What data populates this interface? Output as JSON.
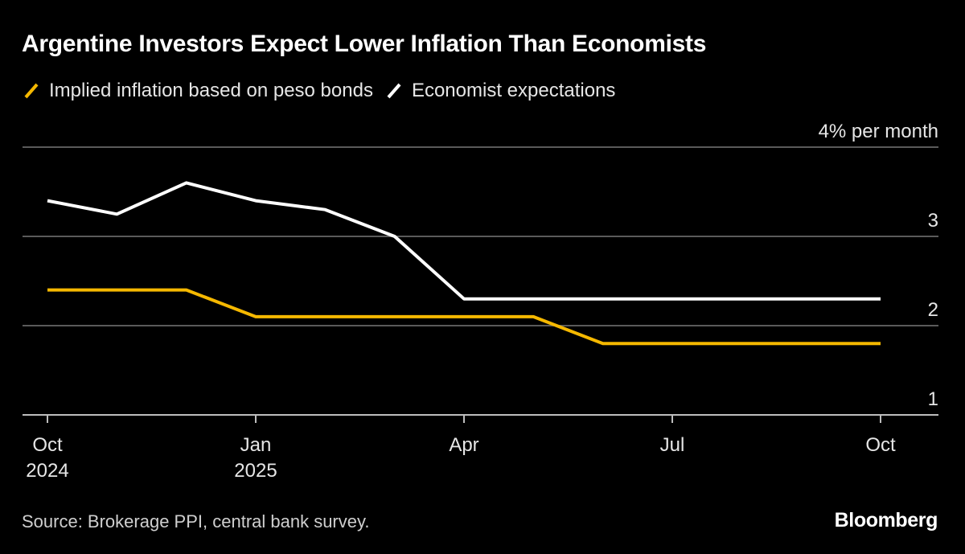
{
  "header": {
    "title": "Argentine Investors Expect Lower Inflation Than Economists"
  },
  "legend": {
    "items": [
      {
        "label": "Implied inflation based on peso bonds",
        "color": "#f5b800"
      },
      {
        "label": "Economist expectations",
        "color": "#ffffff"
      }
    ]
  },
  "footer": {
    "source": "Source: Brokerage PPI, central bank survey.",
    "brand": "Bloomberg"
  },
  "chart_data": {
    "type": "line",
    "title": "Argentine Investors Expect Lower Inflation Than Economists",
    "xlabel": "",
    "ylabel": "",
    "ylim": [
      1,
      4
    ],
    "y_unit_label": "4% per month",
    "y_ticks": [
      {
        "value": 4,
        "label": "4% per month"
      },
      {
        "value": 3,
        "label": "3"
      },
      {
        "value": 2,
        "label": "2"
      },
      {
        "value": 1,
        "label": "1"
      }
    ],
    "xlim": [
      "2024-10",
      "2025-10"
    ],
    "x_ticks": [
      {
        "x": "2024-10",
        "line1": "Oct",
        "line2": "2024"
      },
      {
        "x": "2025-01",
        "line1": "Jan",
        "line2": "2025"
      },
      {
        "x": "2025-04",
        "line1": "Apr",
        "line2": ""
      },
      {
        "x": "2025-07",
        "line1": "Jul",
        "line2": ""
      },
      {
        "x": "2025-10",
        "line1": "Oct",
        "line2": ""
      }
    ],
    "grid": true,
    "series": [
      {
        "name": "Implied inflation based on peso bonds",
        "color": "#f5b800",
        "points": [
          {
            "x": "2024-10",
            "y": 2.4
          },
          {
            "x": "2024-11",
            "y": 2.4
          },
          {
            "x": "2024-12",
            "y": 2.4
          },
          {
            "x": "2025-01",
            "y": 2.1
          },
          {
            "x": "2025-02",
            "y": 2.1
          },
          {
            "x": "2025-03",
            "y": 2.1
          },
          {
            "x": "2025-04",
            "y": 2.1
          },
          {
            "x": "2025-05",
            "y": 2.1
          },
          {
            "x": "2025-06",
            "y": 1.8
          },
          {
            "x": "2025-07",
            "y": 1.8
          },
          {
            "x": "2025-08",
            "y": 1.8
          },
          {
            "x": "2025-09",
            "y": 1.8
          },
          {
            "x": "2025-10",
            "y": 1.8
          }
        ]
      },
      {
        "name": "Economist expectations",
        "color": "#ffffff",
        "points": [
          {
            "x": "2024-10",
            "y": 3.4
          },
          {
            "x": "2024-11",
            "y": 3.25
          },
          {
            "x": "2024-12",
            "y": 3.6
          },
          {
            "x": "2025-01",
            "y": 3.4
          },
          {
            "x": "2025-02",
            "y": 3.3
          },
          {
            "x": "2025-03",
            "y": 3.0
          },
          {
            "x": "2025-04",
            "y": 2.3
          },
          {
            "x": "2025-05",
            "y": 2.3
          },
          {
            "x": "2025-06",
            "y": 2.3
          },
          {
            "x": "2025-07",
            "y": 2.3
          },
          {
            "x": "2025-08",
            "y": 2.3
          },
          {
            "x": "2025-09",
            "y": 2.3
          },
          {
            "x": "2025-10",
            "y": 2.3
          }
        ]
      }
    ]
  }
}
